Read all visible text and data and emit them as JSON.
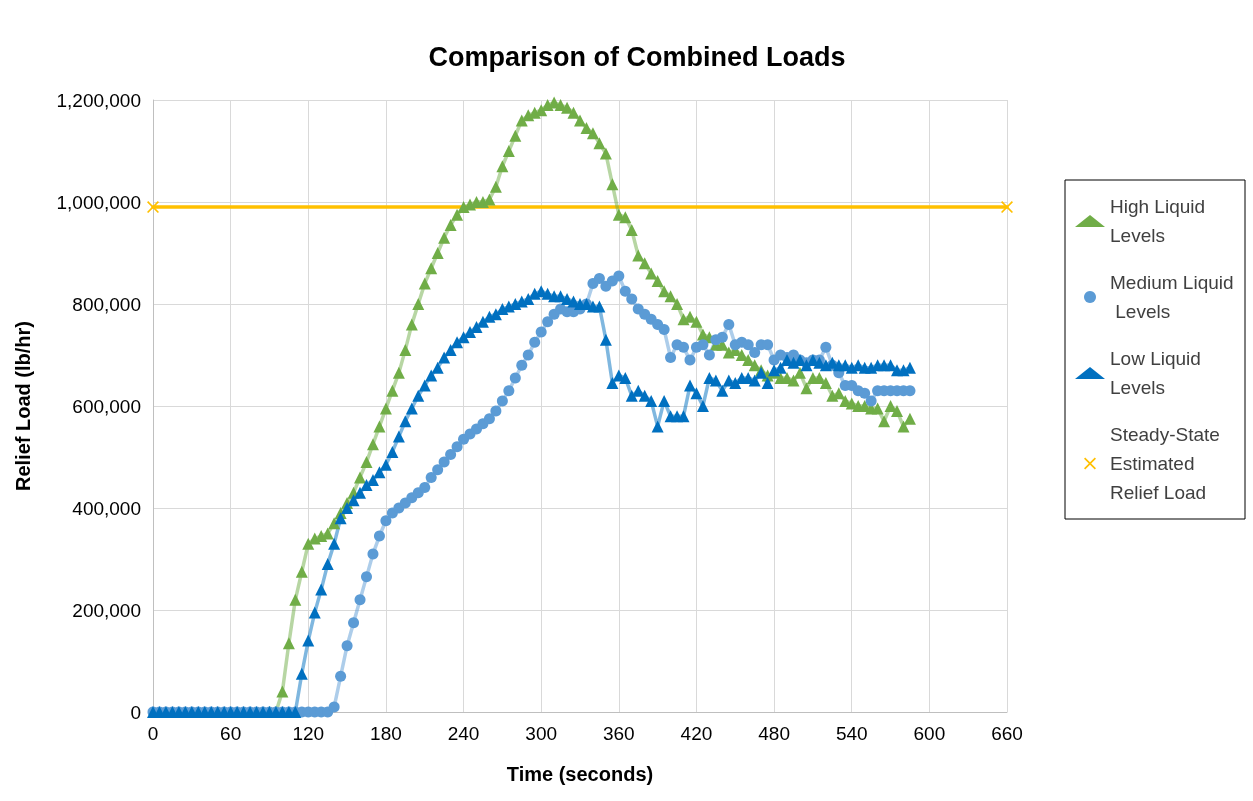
{
  "chart_data": {
    "type": "line",
    "title": "Comparison of Combined Loads",
    "xlabel": "Time (seconds)",
    "ylabel": "Relief Load (lb/hr)",
    "x": [
      0,
      5,
      10,
      15,
      20,
      25,
      30,
      35,
      40,
      45,
      50,
      55,
      60,
      65,
      70,
      75,
      80,
      85,
      90,
      95,
      100,
      105,
      110,
      115,
      120,
      125,
      130,
      135,
      140,
      145,
      150,
      155,
      160,
      165,
      170,
      175,
      180,
      185,
      190,
      195,
      200,
      205,
      210,
      215,
      220,
      225,
      230,
      235,
      240,
      245,
      250,
      255,
      260,
      265,
      270,
      275,
      280,
      285,
      290,
      295,
      300,
      305,
      310,
      315,
      320,
      325,
      330,
      335,
      340,
      345,
      350,
      355,
      360,
      365,
      370,
      375,
      380,
      385,
      390,
      395,
      400,
      405,
      410,
      415,
      420,
      425,
      430,
      435,
      440,
      445,
      450,
      455,
      460,
      465,
      470,
      475,
      480,
      485,
      490,
      495,
      500,
      505,
      510,
      515,
      520,
      525,
      530,
      535,
      540,
      545,
      550,
      555,
      560,
      565,
      570,
      575,
      580,
      585
    ],
    "xlim": [
      0,
      660
    ],
    "xticks": [
      0,
      60,
      120,
      180,
      240,
      300,
      360,
      420,
      480,
      540,
      600,
      660
    ],
    "ylim": [
      0,
      1200000
    ],
    "yticks": [
      {
        "value": 0,
        "label": "0"
      },
      {
        "value": 200000,
        "label": "200,000"
      },
      {
        "value": 400000,
        "label": "400,000"
      },
      {
        "value": 600000,
        "label": "600,000"
      },
      {
        "value": 800000,
        "label": "800,000"
      },
      {
        "value": 1000000,
        "label": "1,000,000"
      },
      {
        "value": 1200000,
        "label": "1,200,000"
      }
    ],
    "grid": true,
    "legend": "right",
    "line_style": "solid",
    "series": [
      {
        "name": "High Liquid Levels",
        "color": "#70ad47",
        "marker": "triangle",
        "values": [
          null,
          null,
          null,
          null,
          null,
          null,
          null,
          null,
          null,
          null,
          null,
          null,
          null,
          null,
          null,
          null,
          null,
          null,
          0,
          0,
          40000,
          135000,
          220000,
          275000,
          330000,
          340000,
          345000,
          350000,
          370000,
          390000,
          410000,
          430000,
          460000,
          490000,
          525000,
          560000,
          595000,
          630000,
          665000,
          710000,
          760000,
          800000,
          840000,
          870000,
          900000,
          930000,
          955000,
          975000,
          990000,
          995000,
          1000000,
          1000000,
          1005000,
          1030000,
          1070000,
          1100000,
          1130000,
          1160000,
          1170000,
          1175000,
          1180000,
          1190000,
          1195000,
          1190000,
          1185000,
          1175000,
          1160000,
          1145000,
          1135000,
          1115000,
          1095000,
          1035000,
          975000,
          970000,
          945000,
          895000,
          880000,
          860000,
          845000,
          825000,
          815000,
          800000,
          770000,
          775000,
          765000,
          740000,
          735000,
          720000,
          720000,
          705000,
          710000,
          700000,
          690000,
          680000,
          670000,
          660000,
          665000,
          655000,
          655000,
          650000,
          665000,
          635000,
          655000,
          655000,
          645000,
          620000,
          625000,
          610000,
          605000,
          600000,
          600000,
          595000,
          595000,
          570000,
          600000,
          590000,
          560000,
          575000
        ]
      },
      {
        "name": "Medium Liquid Levels",
        "color": "#5b9bd5",
        "marker": "circle",
        "values": [
          0,
          0,
          0,
          0,
          0,
          0,
          0,
          0,
          0,
          0,
          0,
          0,
          0,
          0,
          0,
          0,
          0,
          0,
          0,
          0,
          0,
          0,
          0,
          0,
          0,
          0,
          0,
          0,
          10000,
          70000,
          130000,
          175000,
          220000,
          265000,
          310000,
          345000,
          375000,
          390000,
          400000,
          410000,
          420000,
          430000,
          440000,
          460000,
          475000,
          490000,
          505000,
          520000,
          535000,
          545000,
          555000,
          565000,
          575000,
          590000,
          610000,
          630000,
          655000,
          680000,
          700000,
          725000,
          745000,
          765000,
          780000,
          790000,
          785000,
          785000,
          790000,
          800000,
          840000,
          850000,
          835000,
          845000,
          855000,
          825000,
          810000,
          790000,
          780000,
          770000,
          760000,
          750000,
          695000,
          720000,
          715000,
          690000,
          715000,
          720000,
          700000,
          730000,
          735000,
          760000,
          720000,
          725000,
          720000,
          705000,
          720000,
          720000,
          690000,
          700000,
          695000,
          700000,
          690000,
          685000,
          690000,
          690000,
          715000,
          680000,
          665000,
          640000,
          640000,
          630000,
          625000,
          610000,
          630000,
          630000,
          630000,
          630000,
          630000,
          630000
        ]
      },
      {
        "name": "Low Liquid Levels",
        "color": "#0070c0",
        "marker": "triangle",
        "values": [
          0,
          0,
          0,
          0,
          0,
          0,
          0,
          0,
          0,
          0,
          0,
          0,
          0,
          0,
          0,
          0,
          0,
          0,
          0,
          0,
          0,
          0,
          0,
          75000,
          140000,
          195000,
          240000,
          290000,
          330000,
          380000,
          400000,
          415000,
          430000,
          445000,
          455000,
          470000,
          485000,
          510000,
          540000,
          570000,
          595000,
          620000,
          640000,
          660000,
          675000,
          695000,
          710000,
          725000,
          735000,
          745000,
          755000,
          765000,
          775000,
          780000,
          790000,
          795000,
          800000,
          805000,
          810000,
          820000,
          825000,
          820000,
          815000,
          815000,
          810000,
          805000,
          800000,
          800000,
          795000,
          795000,
          730000,
          645000,
          660000,
          655000,
          620000,
          630000,
          620000,
          610000,
          560000,
          610000,
          580000,
          580000,
          580000,
          640000,
          625000,
          600000,
          655000,
          650000,
          630000,
          650000,
          645000,
          655000,
          655000,
          650000,
          665000,
          645000,
          670000,
          675000,
          690000,
          685000,
          690000,
          680000,
          690000,
          685000,
          680000,
          685000,
          680000,
          680000,
          675000,
          680000,
          675000,
          675000,
          680000,
          680000,
          680000,
          670000,
          670000,
          675000
        ]
      },
      {
        "name": "Steady-State Estimated Relief Load",
        "color": "#ffc000",
        "marker": "cross",
        "x": [
          0,
          660
        ],
        "values": [
          990000,
          990000
        ]
      }
    ]
  }
}
